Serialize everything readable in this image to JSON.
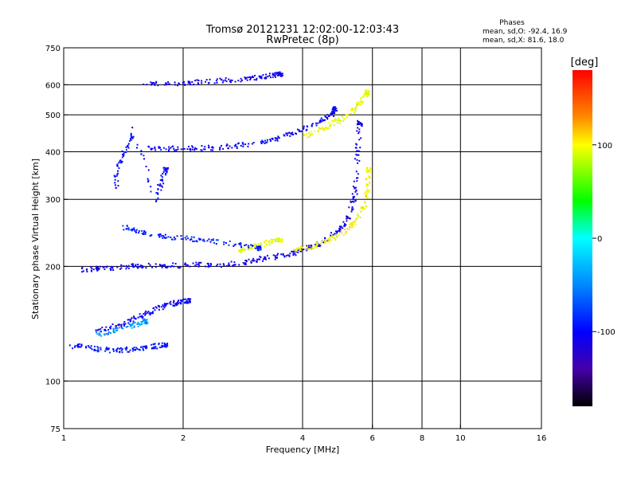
{
  "chart_data": {
    "type": "scatter",
    "title": "Tromsø 20121231 12:02:00-12:03:43",
    "subtitle": "RwPretec (8p)",
    "stats": {
      "heading": "Phases",
      "line_o": "mean, sd,O: -92.4, 16.9",
      "line_x": "mean, sd,X:  81.6, 18.0"
    },
    "xlabel": "Frequency [MHz]",
    "ylabel": "Stationary phase Virtual Height [km]",
    "x_scale": "log",
    "y_scale": "log",
    "xlim": [
      1,
      16
    ],
    "ylim": [
      75,
      750
    ],
    "x_ticks": [
      1,
      2,
      4,
      6,
      8,
      10,
      16
    ],
    "y_ticks": [
      75,
      100,
      200,
      300,
      400,
      500,
      600,
      750
    ],
    "x_grid": [
      2,
      4,
      6,
      8,
      10
    ],
    "y_grid": [
      100,
      200,
      300,
      400,
      500,
      600
    ],
    "grid": true,
    "colorbar": {
      "label": "[deg]",
      "range": [
        -180,
        180
      ],
      "ticks": [
        100,
        0,
        -100
      ],
      "stops": [
        {
          "v": 180,
          "color": "#ff0000"
        },
        {
          "v": 130,
          "color": "#ff8800"
        },
        {
          "v": 100,
          "color": "#ffff00"
        },
        {
          "v": 40,
          "color": "#00ff00"
        },
        {
          "v": 0,
          "color": "#00ffff"
        },
        {
          "v": -50,
          "color": "#0088ff"
        },
        {
          "v": -100,
          "color": "#0000ff"
        },
        {
          "v": -140,
          "color": "#4400aa"
        },
        {
          "v": -180,
          "color": "#000000"
        }
      ]
    },
    "series": [
      {
        "values": [
          [
            1.02,
            124
          ],
          [
            1.1,
            124
          ],
          [
            1.2,
            122
          ],
          [
            1.3,
            121
          ],
          [
            1.4,
            121
          ],
          [
            1.5,
            122
          ],
          [
            1.6,
            123
          ],
          [
            1.7,
            124
          ],
          [
            1.8,
            125
          ]
        ],
        "phase": -95
      },
      {
        "values": [
          [
            1.2,
            136
          ],
          [
            1.3,
            139
          ],
          [
            1.4,
            142
          ],
          [
            1.5,
            146
          ],
          [
            1.6,
            151
          ],
          [
            1.7,
            155
          ],
          [
            1.8,
            158
          ],
          [
            1.9,
            161
          ],
          [
            2.0,
            163
          ],
          [
            2.05,
            163
          ]
        ],
        "phase": -105
      },
      {
        "values": [
          [
            1.2,
            133
          ],
          [
            1.3,
            135
          ],
          [
            1.4,
            138
          ],
          [
            1.5,
            141
          ],
          [
            1.6,
            144
          ]
        ],
        "phase": -45
      },
      {
        "values": [
          [
            1.1,
            197
          ],
          [
            1.2,
            198
          ],
          [
            1.3,
            199
          ],
          [
            1.4,
            200
          ],
          [
            1.5,
            201
          ],
          [
            1.6,
            202
          ],
          [
            1.8,
            202
          ],
          [
            2.0,
            202
          ],
          [
            2.2,
            203
          ],
          [
            2.5,
            203
          ],
          [
            2.8,
            205
          ],
          [
            3.0,
            208
          ],
          [
            3.2,
            211
          ],
          [
            3.5,
            214
          ],
          [
            3.8,
            218
          ],
          [
            4.0,
            222
          ],
          [
            4.3,
            228
          ],
          [
            4.6,
            237
          ],
          [
            4.9,
            250
          ],
          [
            5.1,
            262
          ],
          [
            5.3,
            285
          ],
          [
            5.4,
            315
          ],
          [
            5.45,
            360
          ],
          [
            5.5,
            420
          ],
          [
            5.55,
            480
          ]
        ],
        "phase": -110
      },
      {
        "values": [
          [
            2.7,
            220
          ],
          [
            2.9,
            224
          ],
          [
            3.1,
            229
          ],
          [
            3.3,
            233
          ],
          [
            3.5,
            236
          ]
        ],
        "phase": 95
      },
      {
        "values": [
          [
            3.8,
            222
          ],
          [
            4.1,
            225
          ],
          [
            4.4,
            229
          ],
          [
            4.7,
            236
          ],
          [
            5.0,
            245
          ],
          [
            5.3,
            258
          ],
          [
            5.5,
            272
          ],
          [
            5.7,
            290
          ],
          [
            5.8,
            320
          ],
          [
            5.85,
            360
          ]
        ],
        "phase": 100
      },
      {
        "values": [
          [
            1.6,
            410
          ],
          [
            1.8,
            410
          ],
          [
            2.0,
            410
          ],
          [
            2.2,
            411
          ],
          [
            2.4,
            412
          ],
          [
            2.7,
            416
          ],
          [
            3.0,
            422
          ],
          [
            3.3,
            431
          ],
          [
            3.6,
            442
          ],
          [
            3.9,
            455
          ],
          [
            4.2,
            470
          ],
          [
            4.5,
            490
          ],
          [
            4.7,
            505
          ],
          [
            4.8,
            520
          ]
        ],
        "phase": -105
      },
      {
        "values": [
          [
            4.0,
            440
          ],
          [
            4.3,
            453
          ],
          [
            4.6,
            468
          ],
          [
            4.9,
            485
          ],
          [
            5.2,
            505
          ],
          [
            5.5,
            530
          ],
          [
            5.7,
            560
          ],
          [
            5.8,
            575
          ]
        ],
        "phase": 95
      },
      {
        "values": [
          [
            1.6,
            606
          ],
          [
            1.8,
            606
          ],
          [
            2.0,
            608
          ],
          [
            2.2,
            612
          ],
          [
            2.5,
            618
          ],
          [
            2.8,
            624
          ],
          [
            3.0,
            628
          ],
          [
            3.2,
            634
          ],
          [
            3.4,
            640
          ],
          [
            3.5,
            643
          ]
        ],
        "phase": -110
      },
      {
        "values": [
          [
            1.4,
            255
          ],
          [
            1.5,
            250
          ],
          [
            1.6,
            245
          ],
          [
            1.8,
            240
          ],
          [
            2.0,
            238
          ],
          [
            2.2,
            236
          ],
          [
            2.5,
            232
          ],
          [
            2.8,
            228
          ],
          [
            3.1,
            224
          ]
        ],
        "phase": -90
      },
      {
        "values": [
          [
            1.35,
            320
          ],
          [
            1.35,
            360
          ],
          [
            1.4,
            390
          ],
          [
            1.45,
            420
          ],
          [
            1.5,
            460
          ],
          [
            1.7,
            300
          ],
          [
            1.75,
            330
          ],
          [
            1.8,
            360
          ]
        ],
        "phase": -100
      }
    ]
  }
}
